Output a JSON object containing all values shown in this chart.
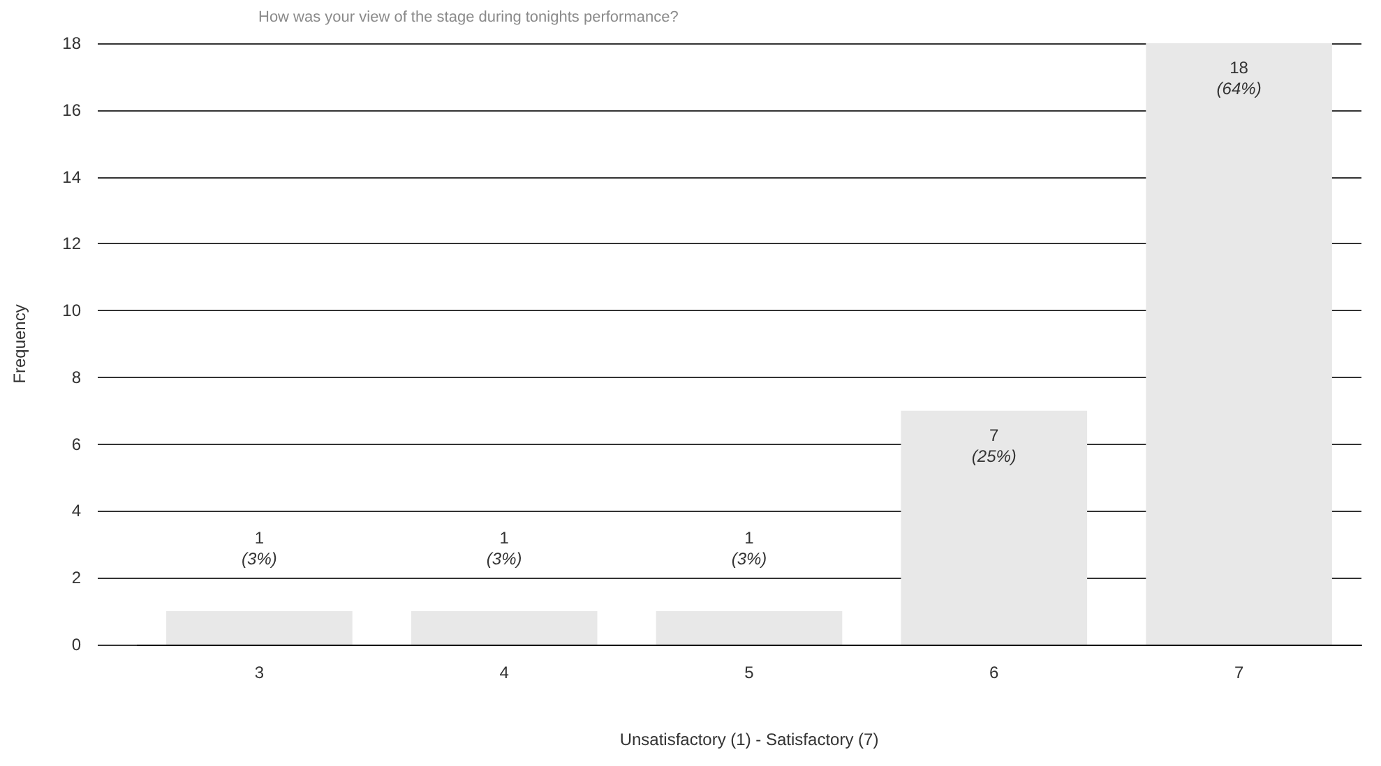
{
  "chart_data": {
    "type": "bar",
    "title": "How was your view of the stage during tonights performance?",
    "xlabel": "Unsatisfactory (1) - Satisfactory (7)",
    "ylabel": "Frequency",
    "categories": [
      "3",
      "4",
      "5",
      "6",
      "7"
    ],
    "values": [
      1,
      1,
      1,
      7,
      18
    ],
    "color": "#e8e8e8",
    "value_labels": [
      "1\n(3%)",
      "1\n(3%)",
      "1\n(3%)",
      "7\n(25%)",
      "18\n(64%)"
    ],
    "ylim": [
      0,
      18
    ],
    "yticks": [
      0,
      2,
      4,
      6,
      8,
      10,
      12,
      14,
      16,
      18
    ],
    "grid": "y"
  }
}
